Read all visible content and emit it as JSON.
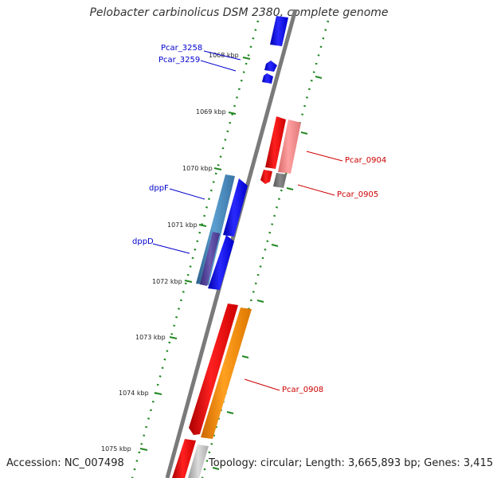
{
  "title": "Pelobacter carbinolicus DSM 2380, complete genome",
  "accession": "Accession: NC_007498",
  "topology": "Topology: circular;",
  "length": "Length: 3,665,893 bp;",
  "genes": "Genes: 3,415",
  "ticks": [
    "1068 kbp",
    "1069 kbp",
    "1070 kbp",
    "1071 kbp",
    "1072 kbp",
    "1073 kbp",
    "1074 kbp",
    "1075 kbp"
  ],
  "gene_labels": [
    {
      "text": "Pcar_3258",
      "color": "#0000cc"
    },
    {
      "text": "Pcar_3259",
      "color": "#0000cc"
    },
    {
      "text": "Pcar_0904",
      "color": "#cc0000"
    },
    {
      "text": "Pcar_0905",
      "color": "#cc0000"
    },
    {
      "text": "dppF",
      "color": "#0000cc"
    },
    {
      "text": "dppD",
      "color": "#0000cc"
    },
    {
      "text": "Pcar_0908",
      "color": "#cc0000"
    }
  ],
  "colors": {
    "backbone": "#888888",
    "tick_dots": "#228822",
    "forward_gene": "#ff0000",
    "reverse_gene": "#0000ff",
    "steel_blue_gene": "#4682b4",
    "orange_gene": "#ff8c00",
    "pink_gene": "#f08080",
    "grey_gene": "#808080"
  }
}
